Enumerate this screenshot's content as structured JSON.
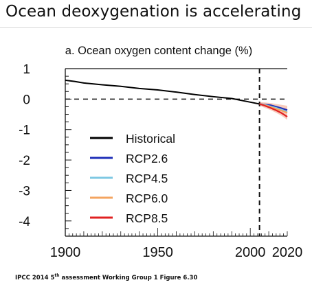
{
  "slide": {
    "title": "Ocean deoxygenation is accelerating"
  },
  "credit": {
    "prefix": "IPCC 2014 5",
    "sup": "th",
    "suffix": " assessment Working Group 1 Figure 6.30"
  },
  "chart_data": {
    "type": "line",
    "title": "a. Ocean oxygen content change (%)",
    "xlabel": "",
    "ylabel": "",
    "xlim": [
      1900,
      2020
    ],
    "ylim": [
      -4.5,
      1
    ],
    "x_ticks": [
      1900,
      1950,
      2000,
      2020
    ],
    "y_ticks": [
      1,
      0,
      -1,
      -2,
      -3,
      -4
    ],
    "reference_lines": {
      "y": 0,
      "x": 2005
    },
    "legend_placement": "center-left",
    "series": [
      {
        "name": "Historical",
        "color": "#000000",
        "x": [
          1900,
          1905,
          1910,
          1920,
          1930,
          1940,
          1950,
          1960,
          1970,
          1980,
          1990,
          2000,
          2005
        ],
        "values": [
          0.62,
          0.58,
          0.53,
          0.47,
          0.42,
          0.35,
          0.3,
          0.23,
          0.15,
          0.08,
          0.02,
          -0.1,
          -0.16
        ]
      },
      {
        "name": "RCP2.6",
        "color": "#1f2fb8",
        "x": [
          2005,
          2008,
          2011,
          2014,
          2017,
          2020
        ],
        "values": [
          -0.16,
          -0.18,
          -0.2,
          -0.25,
          -0.3,
          -0.36
        ]
      },
      {
        "name": "RCP4.5",
        "color": "#7ec8e3",
        "x": [
          2005,
          2008,
          2011,
          2014,
          2017,
          2020
        ],
        "values": [
          -0.16,
          -0.19,
          -0.24,
          -0.29,
          -0.35,
          -0.42
        ]
      },
      {
        "name": "RCP6.0",
        "color": "#f4a460",
        "x": [
          2005,
          2008,
          2011,
          2014,
          2017,
          2020
        ],
        "values": [
          -0.16,
          -0.2,
          -0.26,
          -0.32,
          -0.38,
          -0.45
        ]
      },
      {
        "name": "RCP8.5",
        "color": "#e02020",
        "x": [
          2005,
          2008,
          2011,
          2014,
          2017,
          2020
        ],
        "values": [
          -0.16,
          -0.22,
          -0.29,
          -0.37,
          -0.46,
          -0.58
        ]
      }
    ],
    "projection_band": {
      "color": "#f6c2b0",
      "x": [
        2005,
        2008,
        2011,
        2014,
        2017,
        2020
      ],
      "upper": [
        -0.1,
        -0.11,
        -0.13,
        -0.16,
        -0.19,
        -0.22
      ],
      "lower": [
        -0.22,
        -0.29,
        -0.36,
        -0.45,
        -0.55,
        -0.68
      ]
    }
  }
}
